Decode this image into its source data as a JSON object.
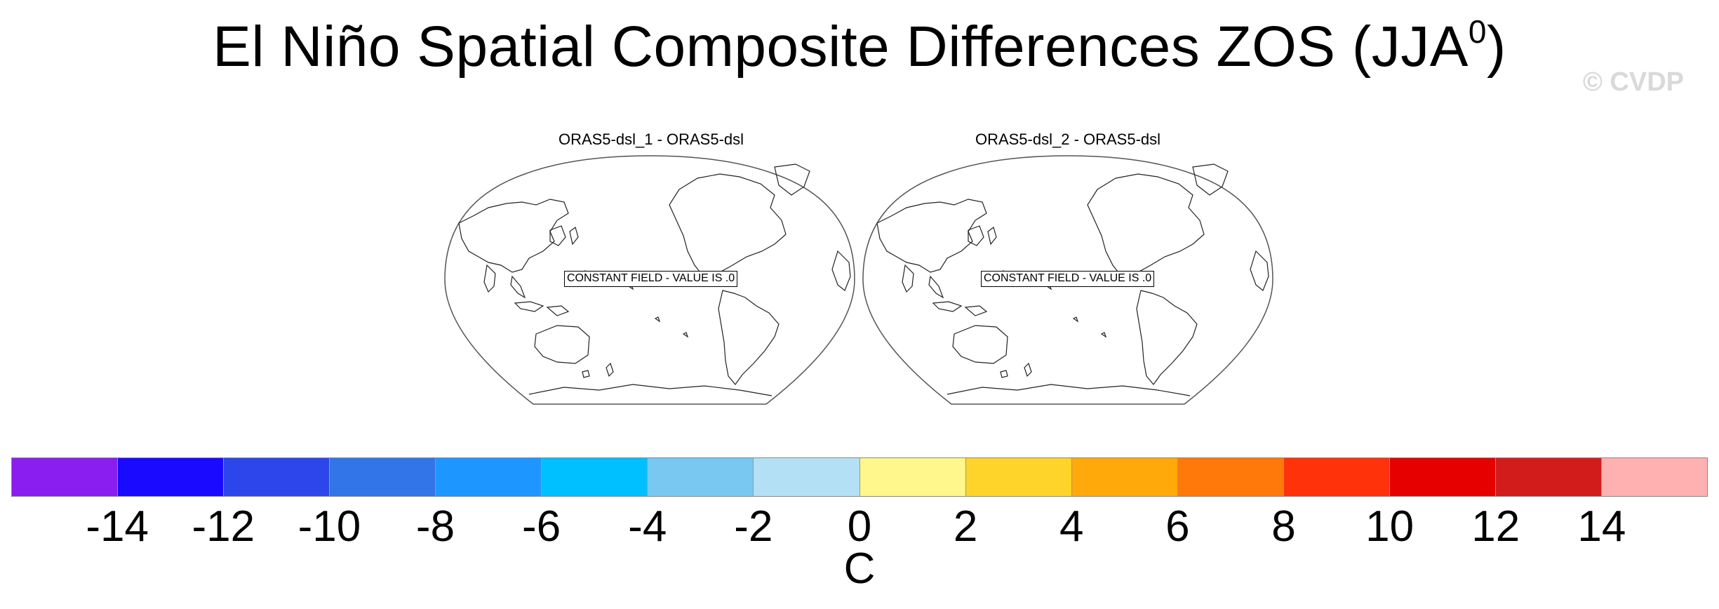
{
  "title": {
    "main": "El Niño Spatial Composite Differences ZOS (JJA",
    "superscript": "0",
    "closing": ")"
  },
  "watermark": "© CVDP",
  "panels": [
    {
      "title": "ORAS5-dsl_1 - ORAS5-dsl",
      "message": "CONSTANT FIELD - VALUE IS .0"
    },
    {
      "title": "ORAS5-dsl_2 - ORAS5-dsl",
      "message": "CONSTANT FIELD - VALUE IS .0"
    }
  ],
  "colorbar": {
    "colors": [
      "#8a1ef0",
      "#1a0aff",
      "#2d46ec",
      "#3175e8",
      "#1e96ff",
      "#00c0ff",
      "#78c8f2",
      "#b4e0f5",
      "#fff68c",
      "#ffd42a",
      "#ffaa0a",
      "#ff780a",
      "#ff320a",
      "#e60000",
      "#d21c1c",
      "#ffb0b0"
    ],
    "tick_labels": [
      "-14",
      "-12",
      "-10",
      "-8",
      "-6",
      "-4",
      "-2",
      "0",
      "2",
      "4",
      "6",
      "8",
      "10",
      "12",
      "14"
    ],
    "units": "C"
  }
}
